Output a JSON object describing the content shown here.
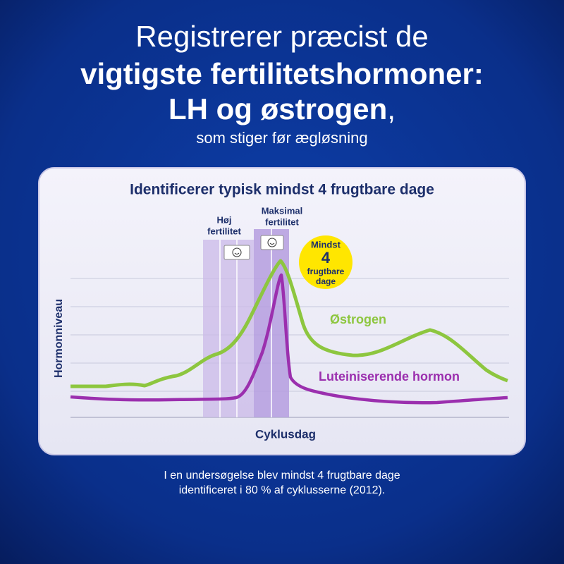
{
  "header": {
    "line1": "Registrerer præcist de",
    "line2": "vigtigste fertilitetshormoner:",
    "line3": "LH og østrogen",
    "line3_suffix": ",",
    "line4": "som stiger før ægløsning"
  },
  "card": {
    "title": "Identificerer typisk mindst 4 frugtbare dage",
    "high_fertility": [
      "Høj",
      "fertilitet"
    ],
    "max_fertility": [
      "Maksimal",
      "fertilitet"
    ],
    "badge": {
      "top": "Mindst",
      "number": "4",
      "bottom": [
        "frugtbare",
        "dage"
      ]
    },
    "estrogen_label": "Østrogen",
    "lh_label": "Luteiniserende hormon",
    "y_label": "Hormonniveau",
    "x_label": "Cyklusdag"
  },
  "footnote": [
    "I en undersøgelse blev mindst 4 frugtbare dage",
    "identificeret i 80 % af cyklusserne (2012)."
  ]
}
